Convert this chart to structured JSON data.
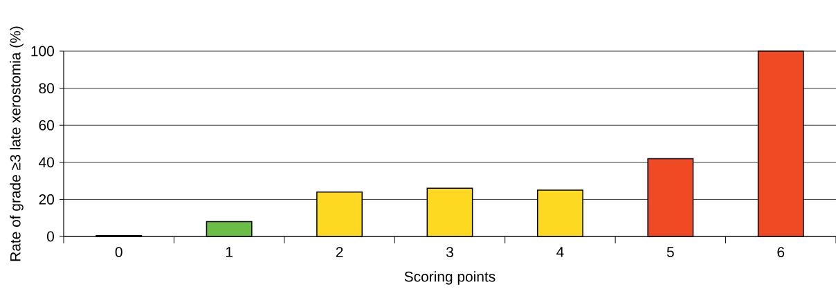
{
  "chart_data": {
    "type": "bar",
    "xlabel": "Scoring points",
    "ylabel": "Rate of grade ≥3 late xerostomia (%)",
    "categories": [
      "0",
      "1",
      "2",
      "3",
      "4",
      "5",
      "6"
    ],
    "values": [
      0.5,
      8,
      24,
      26,
      25,
      42,
      100
    ],
    "colors": [
      "#000000",
      "#6abd45",
      "#fdd922",
      "#fdd922",
      "#fdd922",
      "#f04a24",
      "#f04a24"
    ],
    "ylim": [
      0,
      100
    ],
    "yticks": [
      0,
      20,
      40,
      60,
      80,
      100
    ],
    "grid": "y"
  }
}
